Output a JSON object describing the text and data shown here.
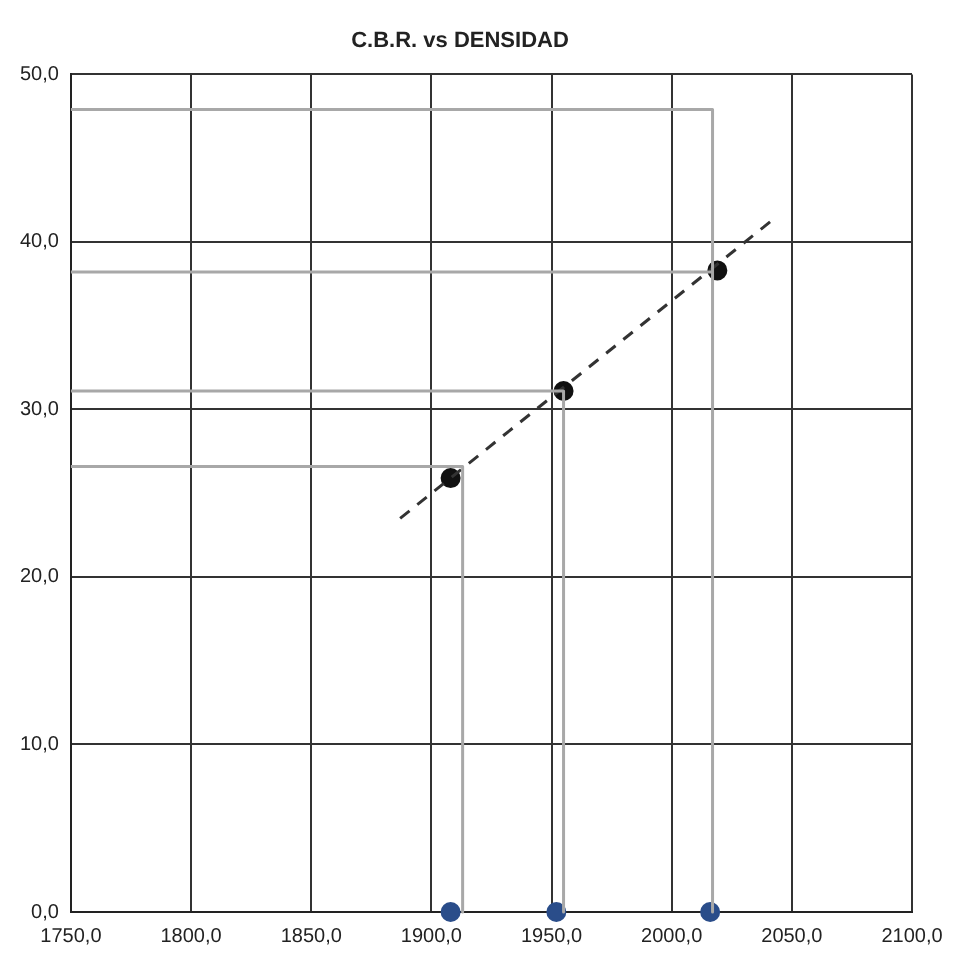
{
  "chart_data": {
    "type": "scatter",
    "title": "C.B.R. vs DENSIDAD",
    "xlim": [
      1750,
      2100
    ],
    "xticks": [
      {
        "value": 1750,
        "label": "1750,0"
      },
      {
        "value": 1800,
        "label": "1800,0"
      },
      {
        "value": 1850,
        "label": "1850,0"
      },
      {
        "value": 1900,
        "label": "1900,0"
      },
      {
        "value": 1950,
        "label": "1950,0"
      },
      {
        "value": 2000,
        "label": "2000,0"
      },
      {
        "value": 2050,
        "label": "2050,0"
      },
      {
        "value": 2100,
        "label": "2100,0"
      }
    ],
    "ylim": [
      0,
      50
    ],
    "yticks": [
      {
        "value": 0,
        "label": "0,0"
      },
      {
        "value": 10,
        "label": "10,0"
      },
      {
        "value": 20,
        "label": "20,0"
      },
      {
        "value": 30,
        "label": "30,0"
      },
      {
        "value": 40,
        "label": "40,0"
      },
      {
        "value": 50,
        "label": "50,0"
      }
    ],
    "grid": true,
    "legend": false,
    "series": [
      {
        "type": "line",
        "color": "#a8a8a8",
        "x": [
          1750,
          1913,
          1913
        ],
        "values": [
          26.6,
          26.6,
          0
        ],
        "marker": "none",
        "line_style": "solid"
      },
      {
        "type": "line",
        "color": "#a8a8a8",
        "x": [
          1750,
          1955,
          1955
        ],
        "values": [
          31.1,
          31.1,
          0
        ],
        "marker": "none",
        "line_style": "solid"
      },
      {
        "type": "line",
        "color": "#a8a8a8",
        "x": [
          1750,
          2017,
          2017
        ],
        "values": [
          47.9,
          47.9,
          0
        ],
        "marker": "none",
        "line_style": "solid"
      },
      {
        "type": "line",
        "color": "#a8a8a8",
        "x": [
          1750,
          2017
        ],
        "values": [
          38.2,
          38.2
        ],
        "marker": "none",
        "line_style": "solid"
      },
      {
        "type": "line",
        "color": "#333333",
        "x": [
          1887,
          2041
        ],
        "values": [
          23.5,
          41.2
        ],
        "marker": "none",
        "line_style": "dashed"
      },
      {
        "type": "scatter",
        "color": "#111111",
        "x": [
          1908,
          1955,
          2019
        ],
        "values": [
          25.9,
          31.1,
          38.3
        ],
        "marker": "circle"
      },
      {
        "type": "scatter",
        "color": "#2a4d8a",
        "x": [
          1908,
          1952,
          2016
        ],
        "values": [
          0,
          0,
          0
        ],
        "marker": "circle"
      }
    ]
  }
}
